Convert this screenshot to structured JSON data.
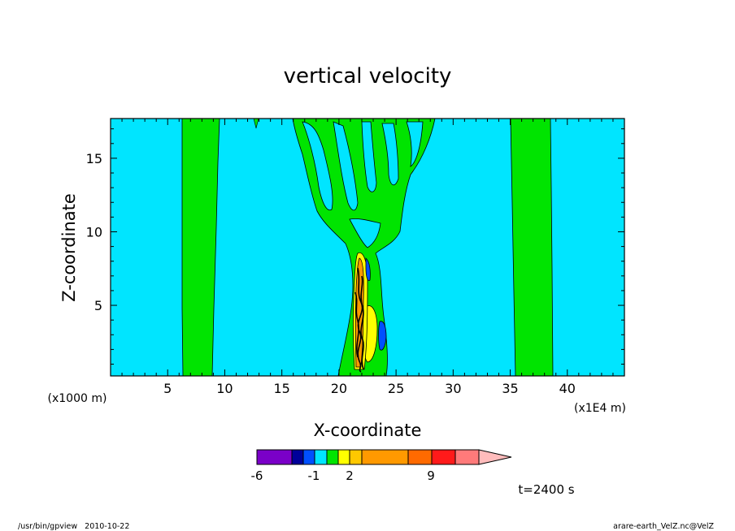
{
  "chart_data": {
    "type": "contour",
    "title": "vertical velocity",
    "xlabel": "X-coordinate",
    "ylabel": "Z-coordinate",
    "x_scale_note": "(x1E4 m)",
    "y_scale_note": "(x1000 m)",
    "xlim": [
      0,
      45
    ],
    "ylim": [
      0.2,
      17.7
    ],
    "x_ticks": [
      "5",
      "10",
      "15",
      "20",
      "25",
      "30",
      "35",
      "40"
    ],
    "x_tick_values": [
      5,
      10,
      15,
      20,
      25,
      30,
      35,
      40
    ],
    "y_ticks": [
      "5",
      "10",
      "15"
    ],
    "y_tick_values": [
      5,
      10,
      15
    ],
    "time_label": "t=2400 s",
    "colorbar": {
      "labels": [
        "-6",
        "-1",
        "2",
        "9"
      ],
      "colors": [
        "#7a00c8",
        "#000099",
        "#0050ff",
        "#00e5ff",
        "#00e400",
        "#ffff00",
        "#ffc800",
        "#ff9900",
        "#ff6a00",
        "#ff1a1a",
        "#ff7a7a",
        "#ffbcbc"
      ]
    },
    "background_color": "#00e5ff",
    "updraft_color": "#00e400"
  },
  "footer": {
    "left": "/usr/bin/gpview   2010-10-22",
    "right": "arare-earth_VelZ.nc@VelZ"
  }
}
